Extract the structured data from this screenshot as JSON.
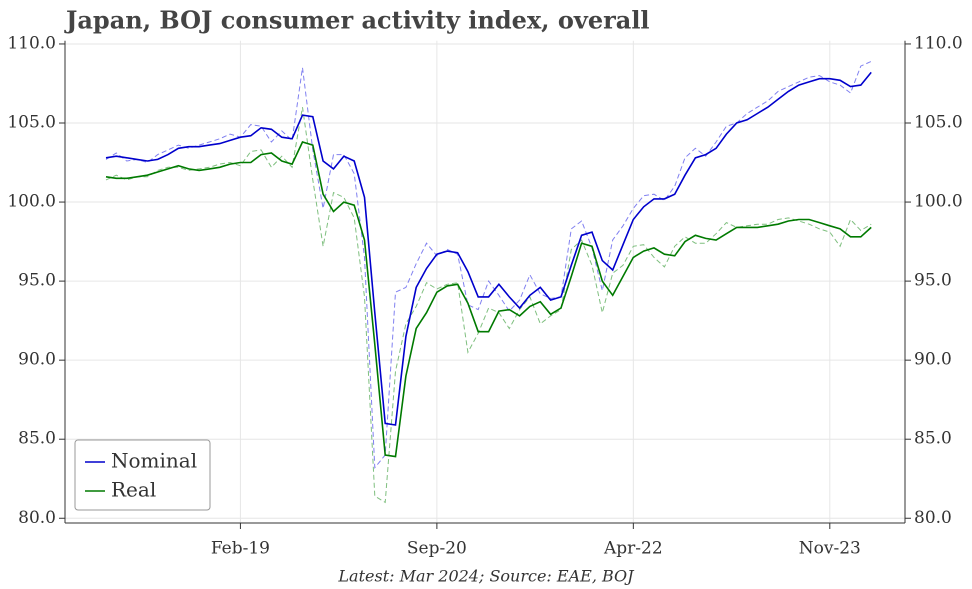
{
  "chart_data": {
    "type": "line",
    "title": "Japan, BOJ consumer activity index, overall",
    "footnote": "Latest: Mar 2024; Source: EAE, BOJ",
    "categories": [
      null,
      null,
      null,
      null,
      null,
      null,
      null,
      null,
      null,
      null,
      null,
      null,
      null,
      "Feb-19",
      null,
      null,
      null,
      null,
      null,
      null,
      null,
      null,
      null,
      null,
      null,
      null,
      null,
      null,
      null,
      null,
      null,
      null,
      "Sep-20",
      null,
      null,
      null,
      null,
      null,
      null,
      null,
      null,
      null,
      null,
      null,
      null,
      null,
      null,
      null,
      null,
      null,
      null,
      "Apr-22",
      null,
      null,
      null,
      null,
      null,
      null,
      null,
      null,
      null,
      null,
      null,
      null,
      null,
      null,
      null,
      null,
      null,
      null,
      "Nov-23",
      null,
      null,
      null,
      null
    ],
    "ylim": [
      79.7,
      110.2
    ],
    "yticks": [
      {
        "value": 80,
        "label": "80.0"
      },
      {
        "value": 85,
        "label": "85.0"
      },
      {
        "value": 90,
        "label": "90.0"
      },
      {
        "value": 95,
        "label": "95.0"
      },
      {
        "value": 100,
        "label": "100.0"
      },
      {
        "value": 105,
        "label": "105.0"
      },
      {
        "value": 110,
        "label": "110.0"
      }
    ],
    "grid": true,
    "legend": "lower left",
    "series": [
      {
        "color": "#8080f0",
        "dashed": true,
        "values": [
          102.7,
          103.1,
          102.6,
          102.7,
          102.5,
          103.0,
          103.3,
          103.6,
          103.4,
          103.6,
          103.8,
          104.0,
          104.3,
          104.1,
          104.9,
          104.8,
          103.8,
          104.5,
          103.9,
          108.5,
          103.3,
          99.6,
          103.0,
          103.0,
          101.8,
          96.5,
          83.2,
          84.0,
          94.3,
          94.6,
          96.1,
          97.4,
          96.6,
          97.0,
          96.7,
          93.5,
          93.2,
          95.0,
          94.1,
          93.1,
          93.8,
          95.4,
          94.2,
          93.9,
          94.0,
          98.3,
          98.8,
          97.1,
          94.4,
          97.6,
          98.5,
          99.6,
          100.4,
          100.5,
          100.1,
          101.0,
          102.8,
          103.4,
          102.9,
          103.8,
          104.8,
          105.0,
          105.6,
          106.0,
          106.4,
          107.0,
          107.3,
          107.6,
          107.9,
          108.0,
          107.6,
          107.4,
          106.9,
          108.6,
          108.9
        ]
      },
      {
        "color": "#7fbf7f",
        "dashed": true,
        "values": [
          101.4,
          101.7,
          101.4,
          101.6,
          101.6,
          102.0,
          102.2,
          102.2,
          102.0,
          102.1,
          102.2,
          102.4,
          102.5,
          102.3,
          103.2,
          103.3,
          102.2,
          102.9,
          102.2,
          106.0,
          101.4,
          97.2,
          100.6,
          100.3,
          99.0,
          94.0,
          81.4,
          81.0,
          89.3,
          92.3,
          93.4,
          94.9,
          94.5,
          94.8,
          94.9,
          90.5,
          91.7,
          93.3,
          93.0,
          92.0,
          93.2,
          94.0,
          92.3,
          92.8,
          93.2,
          97.0,
          97.6,
          96.0,
          93.0,
          95.5,
          96.0,
          97.2,
          97.3,
          96.5,
          95.9,
          97.2,
          97.8,
          97.4,
          97.4,
          98.0,
          98.7,
          98.4,
          98.5,
          98.6,
          98.6,
          98.9,
          99.0,
          98.8,
          98.6,
          98.3,
          98.1,
          97.2,
          98.9,
          98.2,
          98.6
        ]
      },
      {
        "name": "Nominal",
        "color": "#0000cc",
        "values": [
          102.8,
          102.9,
          102.8,
          102.7,
          102.6,
          102.7,
          103.0,
          103.4,
          103.5,
          103.5,
          103.6,
          103.7,
          103.9,
          104.1,
          104.2,
          104.7,
          104.6,
          104.1,
          104.0,
          105.5,
          105.4,
          102.6,
          102.1,
          102.9,
          102.6,
          100.3,
          93.0,
          86.0,
          85.9,
          91.5,
          94.6,
          95.8,
          96.7,
          96.9,
          96.8,
          95.6,
          94.0,
          94.0,
          94.8,
          94.0,
          93.3,
          94.1,
          94.6,
          93.8,
          94.0,
          96.0,
          97.9,
          98.1,
          96.3,
          95.7,
          97.3,
          98.9,
          99.7,
          100.2,
          100.2,
          100.5,
          101.7,
          102.8,
          103.0,
          103.4,
          104.3,
          105.0,
          105.2,
          105.6,
          106.0,
          106.5,
          107.0,
          107.4,
          107.6,
          107.8,
          107.8,
          107.7,
          107.3,
          107.4,
          108.2
        ]
      },
      {
        "name": "Real",
        "color": "#007a00",
        "values": [
          101.6,
          101.5,
          101.5,
          101.6,
          101.7,
          101.9,
          102.1,
          102.3,
          102.1,
          102.0,
          102.1,
          102.2,
          102.4,
          102.5,
          102.5,
          103.0,
          103.1,
          102.6,
          102.4,
          103.8,
          103.6,
          100.5,
          99.4,
          100.0,
          99.8,
          97.6,
          91.0,
          84.0,
          83.9,
          89.0,
          92.0,
          93.0,
          94.3,
          94.7,
          94.8,
          93.6,
          91.8,
          91.8,
          93.1,
          93.2,
          92.8,
          93.4,
          93.7,
          92.9,
          93.3,
          95.3,
          97.4,
          97.2,
          95.0,
          94.1,
          95.3,
          96.5,
          96.9,
          97.1,
          96.7,
          96.6,
          97.5,
          97.9,
          97.7,
          97.6,
          98.0,
          98.4,
          98.4,
          98.4,
          98.5,
          98.6,
          98.8,
          98.9,
          98.9,
          98.7,
          98.5,
          98.3,
          97.8,
          97.8,
          98.4
        ]
      }
    ]
  }
}
